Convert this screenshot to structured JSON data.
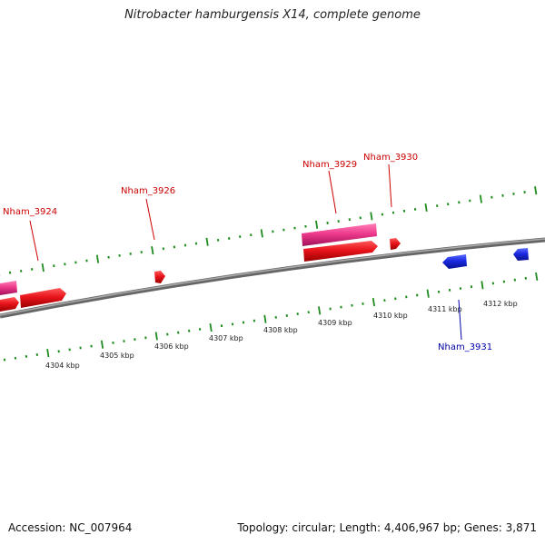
{
  "title": "Nitrobacter hamburgensis X14, complete genome",
  "footer": {
    "accession": "Accession: NC_007964",
    "summary": "Topology: circular; Length: 4,406,967 bp; Genes: 3,871"
  },
  "colors": {
    "forward_gene": "#e8141b",
    "forward_gene_highlight": "#ee3a8c",
    "reverse_gene": "#1a2ae0",
    "backbone": "#888888",
    "ticks": "#1f8c1f",
    "forward_label": "#cc0000",
    "reverse_label": "#0000aa"
  },
  "kbp_labels": [
    "4304 kbp",
    "4305 kbp",
    "4306 kbp",
    "4307 kbp",
    "4308 kbp",
    "4309 kbp",
    "4310 kbp",
    "4311 kbp",
    "4312 kbp"
  ],
  "genes": [
    {
      "name": "Nham_3924",
      "strand": "forward"
    },
    {
      "name": "Nham_3926",
      "strand": "forward"
    },
    {
      "name": "Nham_3929",
      "strand": "forward"
    },
    {
      "name": "Nham_3930",
      "strand": "forward"
    },
    {
      "name": "Nham_3931",
      "strand": "reverse"
    }
  ]
}
